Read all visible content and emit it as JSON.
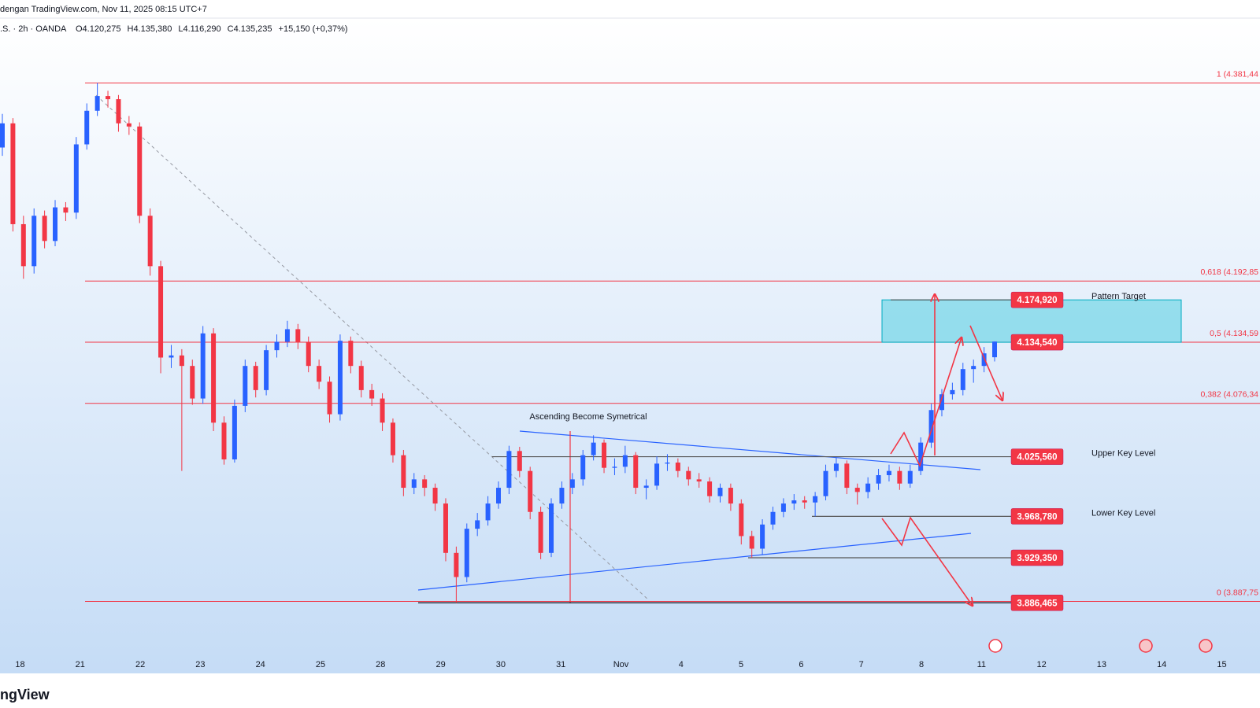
{
  "header": {
    "source": "dengan TradingView.com, Nov 11, 2025 08:15 UTC+7",
    "symbol": ".S. · 2h · OANDA",
    "ohlc": [
      "O4.120,275",
      "H4.135,380",
      "L4.116,290",
      "C4.135,235",
      "+15,150 (+0,37%)"
    ]
  },
  "chart_data": {
    "type": "candlestick",
    "x_labels": [
      "18",
      "21",
      "22",
      "23",
      "24",
      "25",
      "28",
      "29",
      "30",
      "31",
      "Nov",
      "4",
      "5",
      "6",
      "7",
      "8",
      "11",
      "12",
      "13",
      "14",
      "15"
    ],
    "open": [
      4320,
      4343,
      4247,
      4207,
      4255,
      4231,
      4263,
      4258,
      4323,
      4355,
      4369,
      4366,
      4343,
      4340,
      4255,
      4207,
      4120,
      4122,
      4112,
      4081,
      4143,
      4058,
      4023,
      4074,
      4112,
      4089,
      4127,
      4135,
      4147,
      4135,
      4112,
      4097,
      4066,
      4136,
      4112,
      4089,
      4081,
      4058,
      4027,
      3996,
      4004,
      3996,
      3981,
      3934,
      3911,
      3957,
      3965,
      3981,
      3996,
      4031,
      4012,
      3973,
      3934,
      3981,
      3996,
      4004,
      4027,
      4039,
      4015,
      4016,
      4027,
      3996,
      3998,
      4019,
      4020,
      4012,
      4004,
      4002,
      3988,
      3996,
      3981,
      3950,
      3938,
      3961,
      3973,
      3981,
      3984,
      3982,
      3988,
      4012,
      4019,
      3996,
      3992,
      4000,
      4008,
      4012,
      4000,
      4012,
      4039,
      4070,
      4085,
      4089,
      4109,
      4112,
      4120.275
    ],
    "high": [
      4352,
      4348,
      4255,
      4262,
      4260,
      4270,
      4268,
      4330,
      4362,
      4381.44,
      4374,
      4370,
      4350,
      4344,
      4262,
      4212,
      4132,
      4128,
      4118,
      4150,
      4148,
      4064,
      4080,
      4118,
      4116,
      4132,
      4142,
      4155,
      4152,
      4140,
      4118,
      4102,
      4142,
      4140,
      4117,
      4095,
      4086,
      4062,
      4032,
      4010,
      4008,
      4000,
      3986,
      3940,
      3962,
      3972,
      3988,
      4002,
      4036,
      4035,
      4016,
      3978,
      3986,
      4002,
      4010,
      4032,
      4046,
      4042,
      4024,
      4036,
      4030,
      4004,
      4026,
      4028,
      4024,
      4016,
      4010,
      4006,
      4000,
      4000,
      3985,
      3955,
      3966,
      3978,
      3986,
      3990,
      3988,
      3992,
      4018,
      4025,
      4022,
      4000,
      4006,
      4014,
      4018,
      4016,
      4018,
      4044,
      4076,
      4090,
      4096,
      4115,
      4118,
      4130,
      4135.38
    ],
    "low": [
      4312,
      4240,
      4195,
      4200,
      4224,
      4226,
      4250,
      4252,
      4318,
      4350,
      4358,
      4335,
      4332,
      4248,
      4198,
      4105,
      4110,
      4012,
      4075,
      4076,
      4050,
      4018,
      4020,
      4068,
      4082,
      4084,
      4120,
      4130,
      4128,
      4106,
      4090,
      4058,
      4060,
      4105,
      4082,
      4074,
      4050,
      4020,
      3988,
      3990,
      3988,
      3974,
      3926,
      3886.465,
      3906,
      3950,
      3960,
      3976,
      3990,
      4006,
      3966,
      3928,
      3930,
      3976,
      3990,
      3998,
      4022,
      4010,
      4008,
      4010,
      3990,
      3985,
      3994,
      4012,
      4006,
      3998,
      3996,
      3982,
      3982,
      3974,
      3942,
      3929.35,
      3932,
      3956,
      3968,
      3975,
      3976,
      3968.78,
      3984,
      4006,
      3990,
      3980,
      3986,
      3994,
      4002,
      3994,
      3996,
      4008,
      4034,
      4064,
      4080,
      4084,
      4096,
      4106,
      4116.29
    ],
    "close": [
      4343,
      4247,
      4207,
      4255,
      4231,
      4263,
      4258,
      4323,
      4355,
      4369,
      4366,
      4343,
      4340,
      4255,
      4207,
      4120,
      4122,
      4112,
      4081,
      4143,
      4058,
      4023,
      4074,
      4112,
      4089,
      4127,
      4135,
      4147,
      4135,
      4112,
      4097,
      4066,
      4136,
      4112,
      4089,
      4081,
      4058,
      4027,
      3996,
      4004,
      3996,
      3981,
      3934,
      3911,
      3957,
      3965,
      3981,
      3996,
      4031,
      4012,
      3973,
      3934,
      3981,
      3996,
      4004,
      4027,
      4039,
      4015,
      4016,
      4027,
      3996,
      3998,
      4019,
      4020,
      4012,
      4004,
      4002,
      3988,
      3996,
      3981,
      3950,
      3938,
      3961,
      3973,
      3981,
      3984,
      3982,
      3988,
      4012,
      4019,
      3996,
      3992,
      4000,
      4008,
      4012,
      4000,
      4012,
      4039,
      4070,
      4085,
      4089,
      4109,
      4112,
      4124,
      4135.235
    ],
    "up_color": "#2962ff",
    "down_color": "#f23645",
    "ylim": [
      3820,
      4423
    ],
    "fib_levels": [
      {
        "value": 4381.44,
        "label": "1 (4.381,44"
      },
      {
        "value": 4192.85,
        "label": "0,618 (4.192,85"
      },
      {
        "value": 4134.59,
        "label": "0,5 (4.134,59"
      },
      {
        "value": 4076.34,
        "label": "0,382 (4.076,34"
      },
      {
        "value": 3887.75,
        "label": "0 (3.887,75"
      }
    ],
    "price_labels": [
      {
        "value": 4174.92,
        "label": "4.174,920"
      },
      {
        "value": 4134.54,
        "label": "4.134,540"
      },
      {
        "value": 4025.56,
        "label": "4.025,560"
      },
      {
        "value": 3968.78,
        "label": "3.968,780"
      },
      {
        "value": 3929.35,
        "label": "3.929,350"
      },
      {
        "value": 3886.465,
        "label": "3.886,465"
      }
    ],
    "level_notes": [
      "Pattern Target",
      "Upper Key Level",
      "Lower Key Level"
    ],
    "pattern_note": "Ascending Become Symetrical"
  },
  "footer": "ngView"
}
